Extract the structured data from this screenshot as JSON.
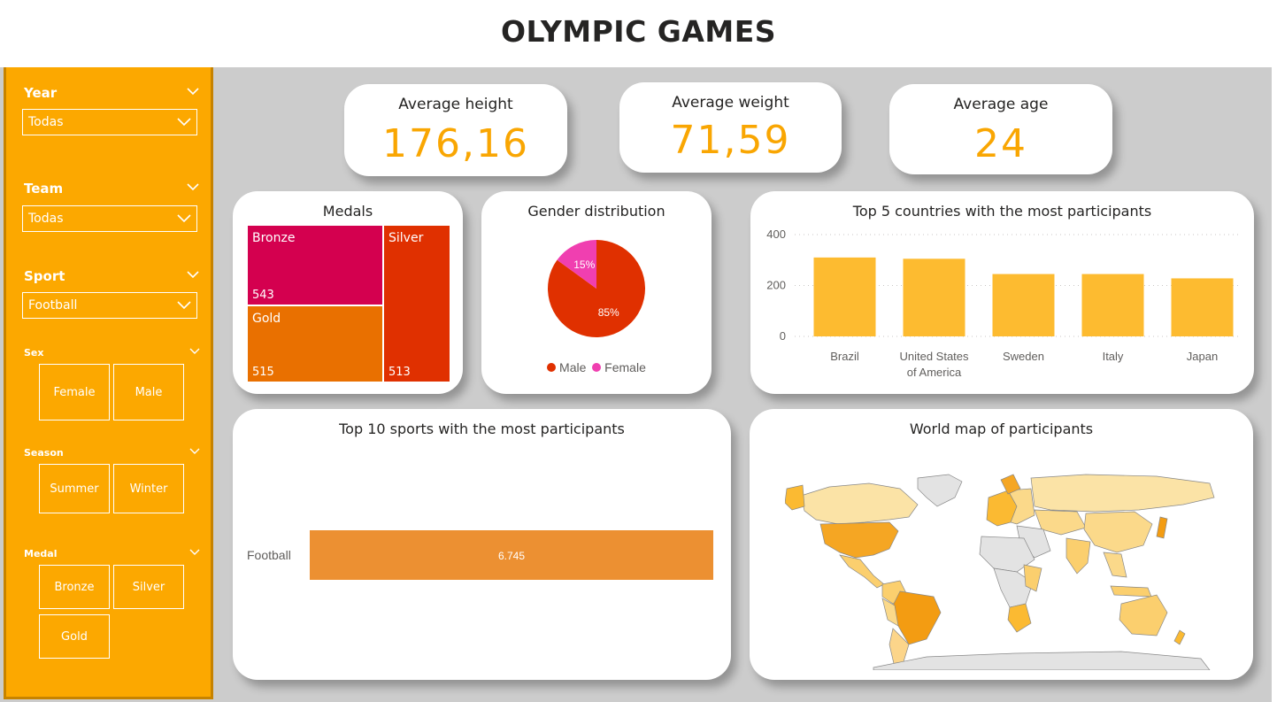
{
  "title": "OLYMPIC GAMES",
  "filters": {
    "year": {
      "label": "Year",
      "value": "Todas"
    },
    "team": {
      "label": "Team",
      "value": "Todas"
    },
    "sport": {
      "label": "Sport",
      "value": "Football"
    },
    "sex": {
      "label": "Sex",
      "options": [
        "Female",
        "Male"
      ]
    },
    "season": {
      "label": "Season",
      "options": [
        "Summer",
        "Winter"
      ]
    },
    "medal": {
      "label": "Medal",
      "options": [
        "Bronze",
        "Silver",
        "Gold"
      ]
    }
  },
  "kpis": {
    "height": {
      "label": "Average height",
      "value": "176,16"
    },
    "weight": {
      "label": "Average weight",
      "value": "71,59"
    },
    "age": {
      "label": "Average age",
      "value": "24"
    }
  },
  "medals": {
    "title": "Medals",
    "items": [
      {
        "name": "Bronze",
        "value": "543",
        "color": "#d4004f"
      },
      {
        "name": "Gold",
        "value": "515",
        "color": "#e97000"
      },
      {
        "name": "Silver",
        "value": "513",
        "color": "#e03000"
      }
    ]
  },
  "gender": {
    "title": "Gender distribution",
    "slices": [
      {
        "name": "Male",
        "percent": 85,
        "label": "85%",
        "color": "#e03000"
      },
      {
        "name": "Female",
        "percent": 15,
        "label": "15%",
        "color": "#f03fb0"
      }
    ]
  },
  "chart_data": [
    {
      "type": "bar",
      "title": "Top 5 countries with the most participants",
      "categories": [
        "Brazil",
        "United States of America",
        "Sweden",
        "Italy",
        "Japan"
      ],
      "category_lines": [
        [
          "Brazil"
        ],
        [
          "United States",
          "of America"
        ],
        [
          "Sweden"
        ],
        [
          "Italy"
        ],
        [
          "Japan"
        ]
      ],
      "values": [
        310,
        305,
        245,
        245,
        228
      ],
      "yticks": [
        "0",
        "200",
        "400"
      ],
      "ylim": [
        0,
        400
      ],
      "grid": true,
      "color": "#fdbb30"
    },
    {
      "type": "bar",
      "orientation": "horizontal",
      "title": "Top 10 sports with the most participants",
      "categories": [
        "Football"
      ],
      "values": [
        6745
      ],
      "value_labels": [
        "6.745"
      ],
      "color": "#ec9032"
    }
  ],
  "map": {
    "title": "World map of participants"
  },
  "colors": {
    "accent": "#fca800",
    "kpi": "#f9a602",
    "canvas": "#cccccc"
  }
}
